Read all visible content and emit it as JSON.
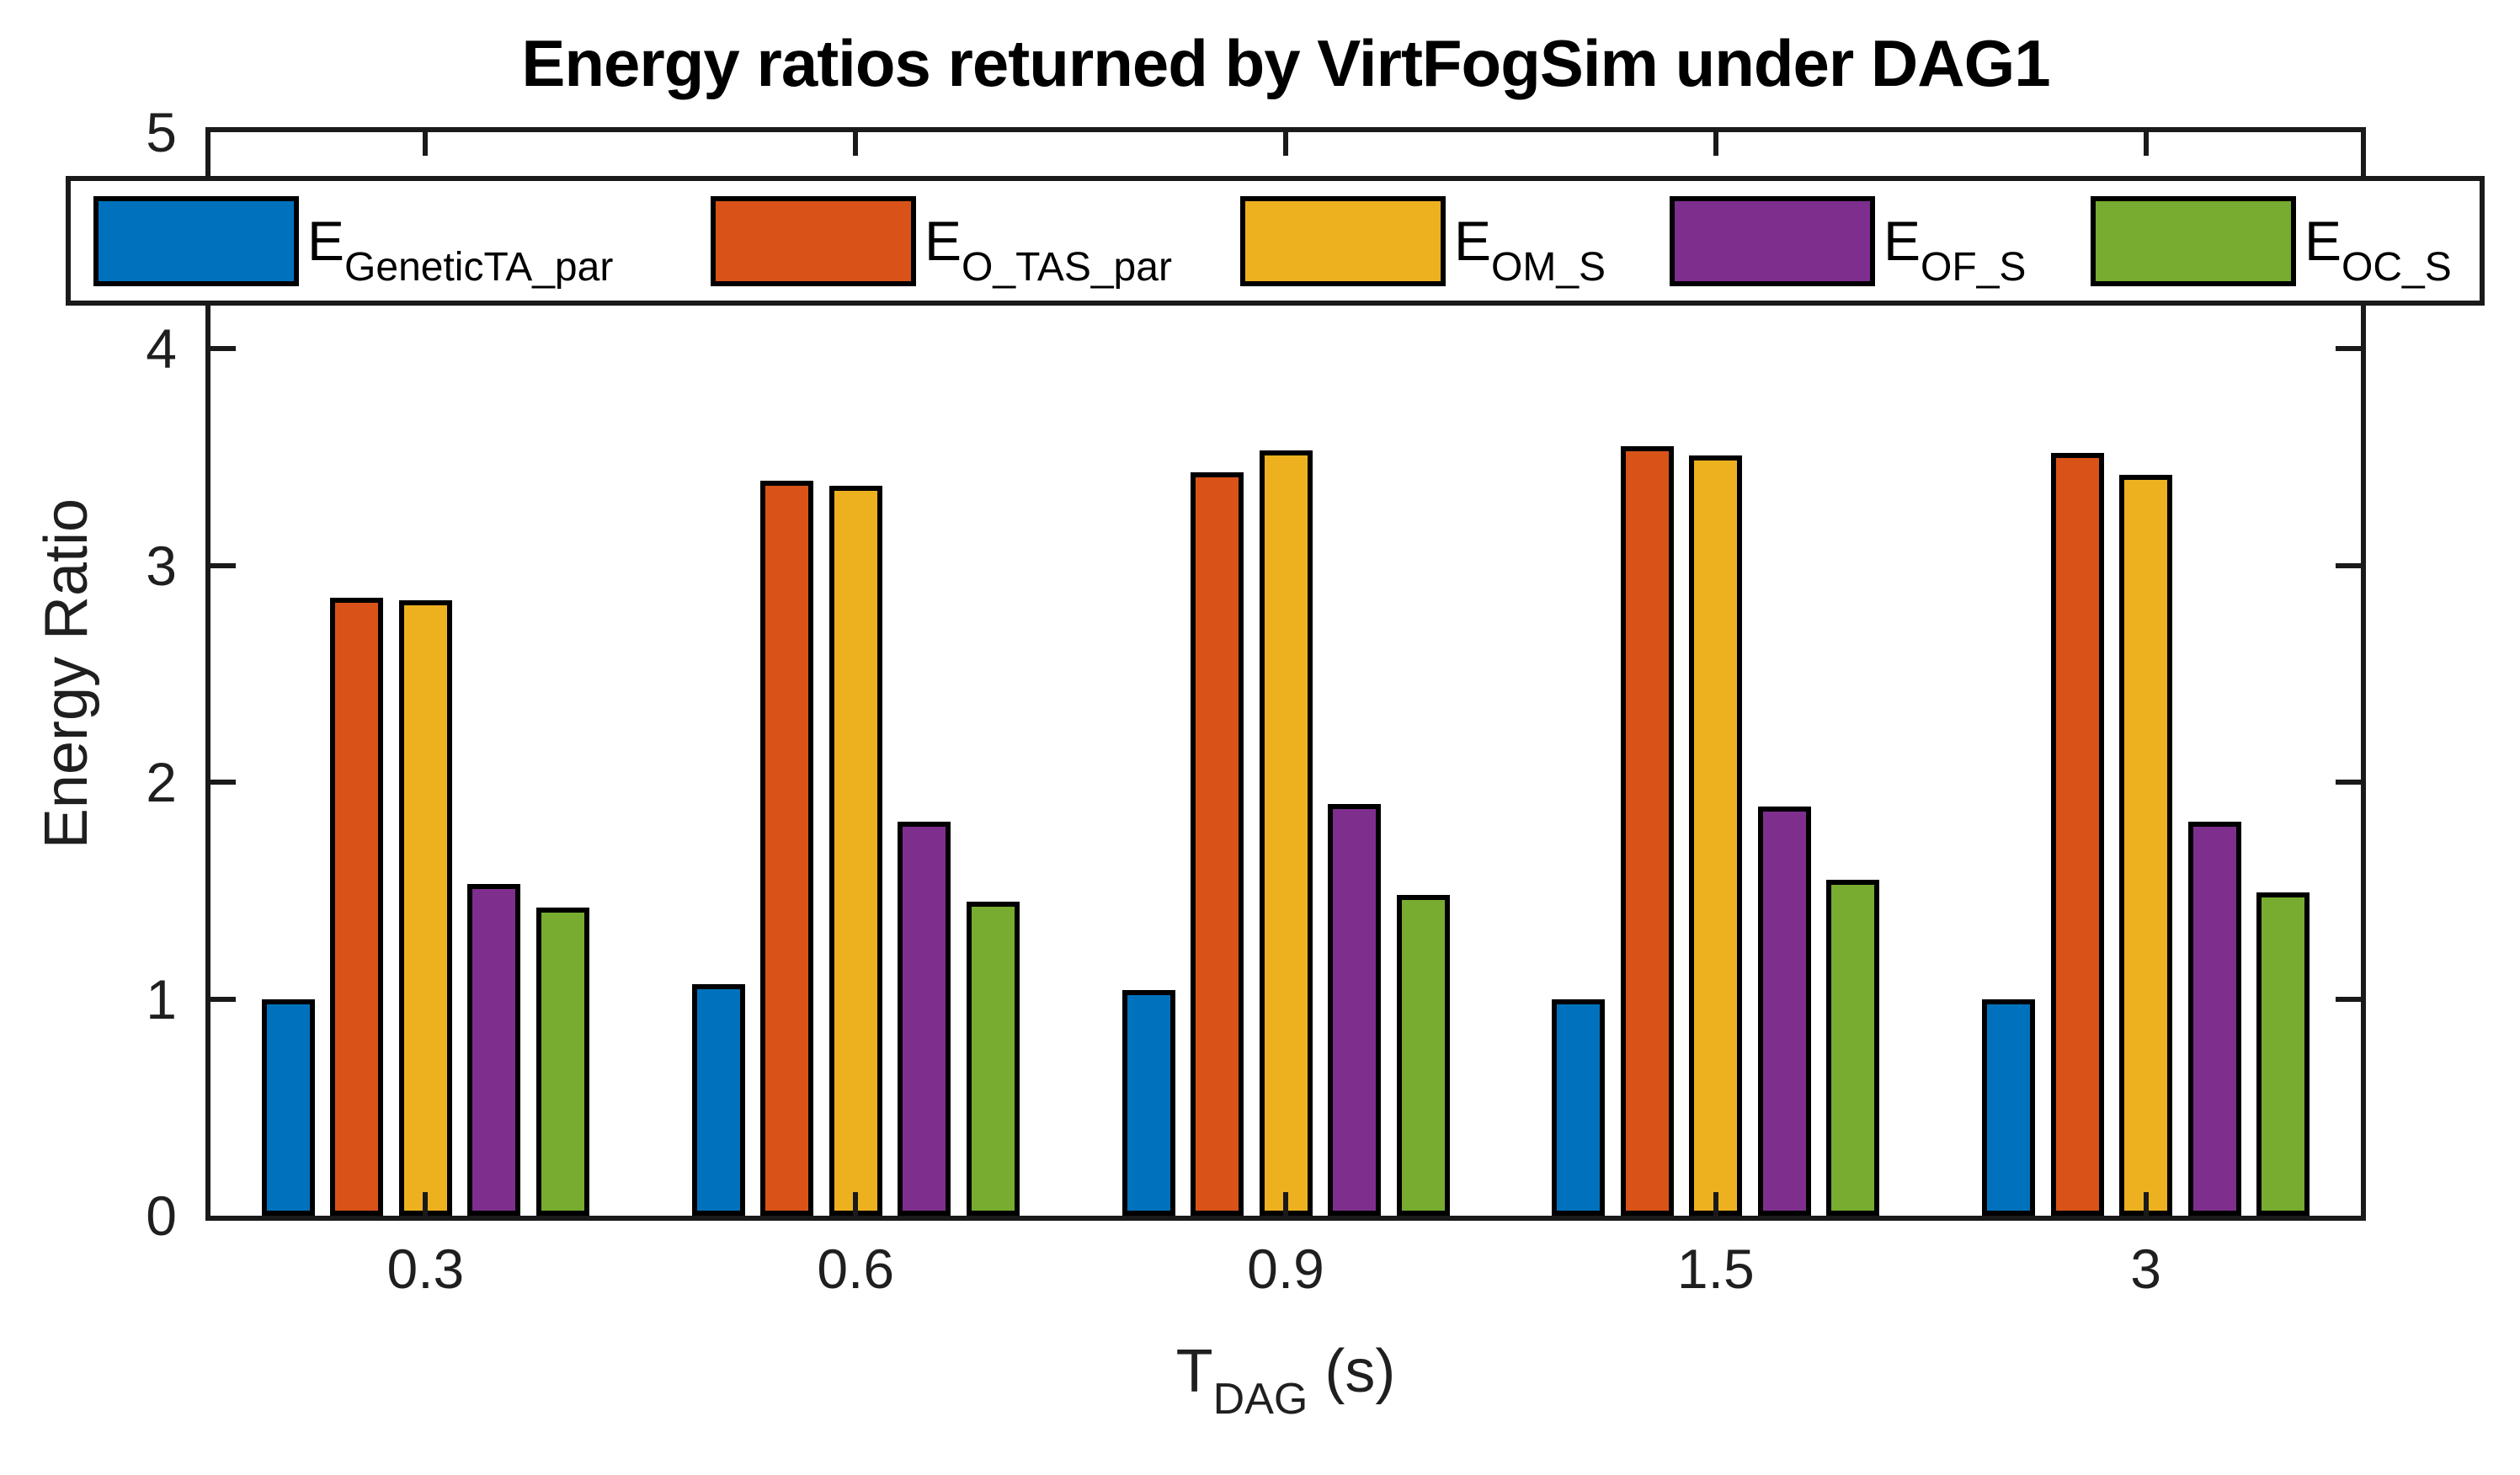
{
  "chart_data": {
    "type": "bar",
    "title": "Energy ratios returned by VirtFogSim under DAG1",
    "ylabel": "Energy Ratio",
    "xlabel": {
      "main": "T",
      "sub": "DAG",
      "unit": "(s)"
    },
    "categories": [
      "0.3",
      "0.6",
      "0.9",
      "1.5",
      "3"
    ],
    "ylim": [
      0,
      5
    ],
    "yticks": [
      0,
      1,
      2,
      3,
      4,
      5
    ],
    "grid": false,
    "legend_position": "top-horizontal",
    "series": [
      {
        "legend_main": "E",
        "legend_sub": "GeneticTA_par",
        "color": "#0072BD",
        "values": [
          1.0,
          1.07,
          1.04,
          1.0,
          1.0
        ]
      },
      {
        "legend_main": "E",
        "legend_sub": "O_TAS_par",
        "color": "#D95319",
        "values": [
          2.85,
          3.39,
          3.43,
          3.55,
          3.52
        ]
      },
      {
        "legend_main": "E",
        "legend_sub": "OM_S",
        "color": "#EDB120",
        "values": [
          2.84,
          3.37,
          3.53,
          3.51,
          3.42
        ]
      },
      {
        "legend_main": "E",
        "legend_sub": "OF_S",
        "color": "#7E2F8E",
        "values": [
          1.53,
          1.82,
          1.9,
          1.89,
          1.82
        ]
      },
      {
        "legend_main": "E",
        "legend_sub": "OC_S",
        "color": "#77AC30",
        "values": [
          1.42,
          1.45,
          1.48,
          1.55,
          1.49
        ]
      }
    ],
    "colors": {
      "axis": "#1a1a1a",
      "tick_text": "#1f1f1f",
      "bar_edge": "#000000",
      "background": "#ffffff"
    }
  }
}
